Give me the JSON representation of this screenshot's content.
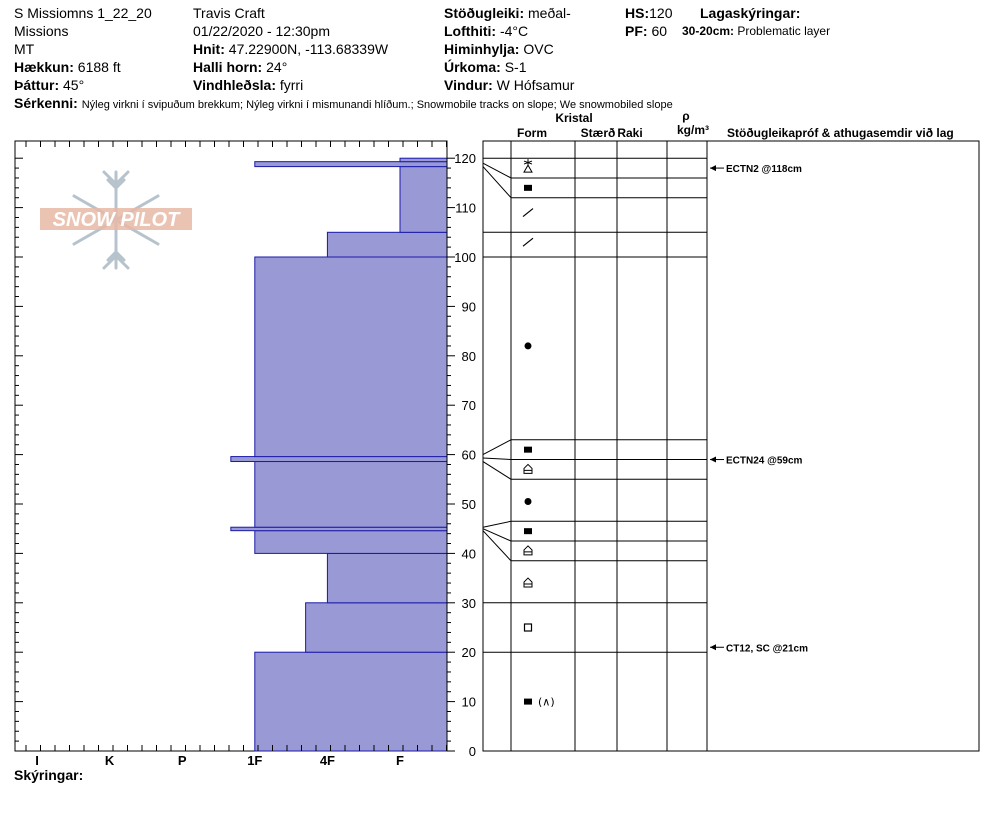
{
  "header": {
    "location_name": "S Missiomns 1_22_20",
    "region": "Missions",
    "state": "MT",
    "elevation": {
      "label": "Hækkun:",
      "value": "6188 ft"
    },
    "aspect": {
      "label": "Þáttur:",
      "value": "45°"
    },
    "observer": "Travis  Craft",
    "datetime": "01/22/2020 - 12:30pm",
    "coords": {
      "label": "Hnit:",
      "value": "47.22900N, -113.68339W"
    },
    "slope": {
      "label": "Halli horn:",
      "value": "24°"
    },
    "wind_loading": {
      "label": "Vindhleðsla:",
      "value": "fyrri"
    },
    "stability": {
      "label": "Stöðugleiki:",
      "value": "meðal-"
    },
    "air_temp": {
      "label": "Lofthiti:",
      "value": "-4°C"
    },
    "sky": {
      "label": "Himinhylja:",
      "value": "OVC"
    },
    "precip": {
      "label": "Úrkoma:",
      "value": "S-1"
    },
    "wind": {
      "label": "Vindur:",
      "value": "W Hófsamur"
    },
    "hs": {
      "label": "HS:",
      "value": "120"
    },
    "pf": {
      "label": "PF:",
      "value": "60"
    },
    "layer_notes_label": "Lagaskýringar:",
    "layer_note": {
      "label": "30-20cm:",
      "value": "Problematic layer"
    },
    "remarks": {
      "label": "Sérkenni:",
      "value": "Nýleg virkni í svipuðum brekkum; Nýleg virkni í mismunandi hlíðum.; Snowmobile tracks on slope; We snowmobiled slope"
    },
    "legend_label": "Skýringar:"
  },
  "logo_text": "SNOW PILOT",
  "colors": {
    "bar_fill": "#9999d6",
    "bar_stroke": "#1a1aa8",
    "line": "#000000"
  },
  "chart_data": {
    "type": "bar",
    "orientation": "horizontal",
    "description_axis": "hardness",
    "x_categories": [
      "I",
      "K",
      "P",
      "1F",
      "4F",
      "F"
    ],
    "y_ticks": [
      0,
      10,
      20,
      30,
      40,
      50,
      60,
      70,
      80,
      90,
      100,
      110,
      120
    ],
    "ylim": [
      0,
      121
    ],
    "grid": false,
    "hardness_profile": [
      {
        "bottom": 0,
        "top": 20,
        "hardness_index": 3
      },
      {
        "bottom": 20,
        "top": 30,
        "hardness_index": 3.7
      },
      {
        "bottom": 30,
        "top": 40,
        "hardness_index": 4
      },
      {
        "bottom": 40,
        "top": 44.6,
        "hardness_index": 3
      },
      {
        "bottom": 44.6,
        "top": 45.3,
        "hardness_index": 2.67
      },
      {
        "bottom": 45.3,
        "top": 58.6,
        "hardness_index": 3
      },
      {
        "bottom": 58.6,
        "top": 59.6,
        "hardness_index": 2.67
      },
      {
        "bottom": 59.6,
        "top": 100,
        "hardness_index": 3
      },
      {
        "bottom": 100,
        "top": 105,
        "hardness_index": 4
      },
      {
        "bottom": 105,
        "top": 118.3,
        "hardness_index": 5
      },
      {
        "bottom": 118.3,
        "top": 119.3,
        "hardness_index": 3
      },
      {
        "bottom": 119.3,
        "top": 120,
        "hardness_index": 5
      }
    ],
    "table_headers": {
      "crystal": "Kristal",
      "form": "Form",
      "size": "Stærð",
      "wetness": "Raki",
      "rho": "ρ",
      "density_unit": "kg/m³",
      "tests": "Stöðugleikapróf & athugasemdir við lag"
    },
    "layer_boundaries": [
      120,
      116,
      112,
      105,
      100,
      63,
      59,
      55,
      46.5,
      42.5,
      38.5,
      30,
      20
    ],
    "crystal_forms": [
      {
        "depth": 118,
        "symbol": "surface-hoar-faceted"
      },
      {
        "depth": 114,
        "symbol": "faceted"
      },
      {
        "depth": 109,
        "symbol": "decomposing"
      },
      {
        "depth": 103,
        "symbol": "decomposing"
      },
      {
        "depth": 82,
        "symbol": "rounded"
      },
      {
        "depth": 61,
        "symbol": "faceted"
      },
      {
        "depth": 57,
        "symbol": "depth-hoar"
      },
      {
        "depth": 50.5,
        "symbol": "rounded"
      },
      {
        "depth": 44.5,
        "symbol": "faceted"
      },
      {
        "depth": 40.5,
        "symbol": "depth-hoar"
      },
      {
        "depth": 34,
        "symbol": "depth-hoar"
      },
      {
        "depth": 25,
        "symbol": "faceted-rounding"
      },
      {
        "depth": 10,
        "symbol": "faceted-with-crust",
        "text": "(∧)"
      }
    ],
    "tests": [
      {
        "depth": 118,
        "text": "ECTN2 @118cm"
      },
      {
        "depth": 59,
        "text": "ECTN24 @59cm"
      },
      {
        "depth": 21,
        "text": "CT12, SC @21cm"
      }
    ]
  }
}
